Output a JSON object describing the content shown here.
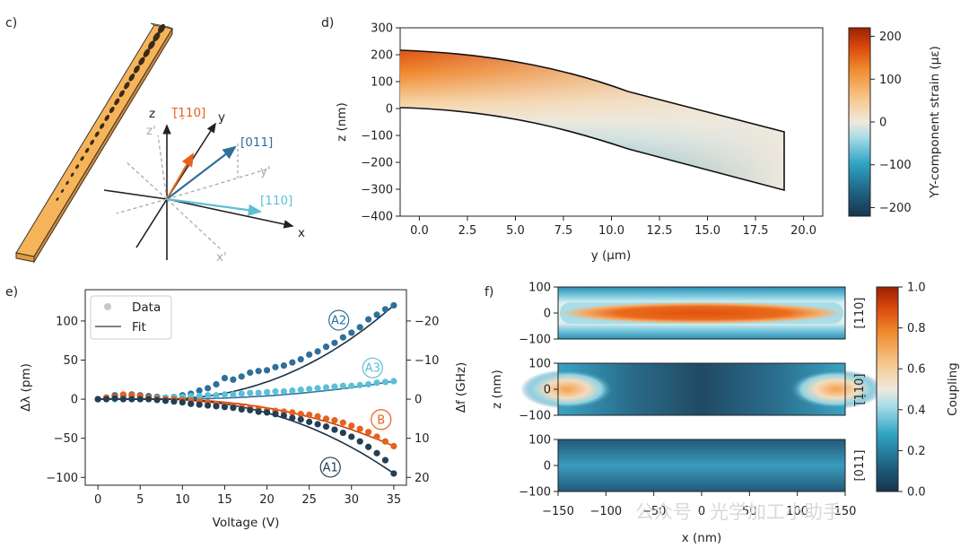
{
  "panels": {
    "c": "c)",
    "d": "d)",
    "e": "e)",
    "f": "f)"
  },
  "panel_c": {
    "axes": {
      "z": "z",
      "y": "y",
      "x": "x",
      "zp": "z'",
      "yp": "y'",
      "xp": "x'"
    },
    "directions": {
      "m110": "[̅1̠10]",
      "d011": "[011]",
      "d110": "[110]"
    },
    "direction_labels": {
      "m110": "[110]",
      "d011": "[011]",
      "d110": "[110]"
    },
    "colors": {
      "m110": "#e8601c",
      "d011": "#2f6f9a",
      "d110": "#5bc0d6",
      "beam": "#f6b45a"
    }
  },
  "chart_data": [
    {
      "id": "d",
      "type": "heatmap",
      "xlabel": "y (μm)",
      "ylabel": "z (nm)",
      "xlim": [
        -1,
        21
      ],
      "ylim": [
        -400,
        300
      ],
      "xticks": [
        "0.0",
        "2.5",
        "5.0",
        "7.5",
        "10.0",
        "12.5",
        "15.0",
        "17.5",
        "20.0"
      ],
      "yticks": [
        "300",
        "200",
        "100",
        "0",
        "−100",
        "−200",
        "−300",
        "−400"
      ],
      "colorbar": {
        "label": "YY-component strain (με)",
        "ticks": [
          "200",
          "100",
          "0",
          "−100",
          "−200"
        ],
        "range": [
          -220,
          220
        ]
      },
      "beam": {
        "y_start": 0,
        "y_end": 19,
        "top_z_start": 215,
        "top_z_end": -85,
        "bottom_z_start": 0,
        "bottom_z_end": -300
      }
    },
    {
      "id": "e",
      "type": "scatter",
      "xlabel": "Voltage (V)",
      "ylabel": "Δλ (pm)",
      "ylabel_right": "Δf (GHz)",
      "xlim": [
        -1.5,
        36.5
      ],
      "ylim": [
        -110,
        140
      ],
      "xticks": [
        "0",
        "5",
        "10",
        "15",
        "20",
        "25",
        "30",
        "35"
      ],
      "yticks": [
        "100",
        "50",
        "0",
        "−50",
        "−100"
      ],
      "yticks_right": [
        "−20",
        "−10",
        "0",
        "10",
        "20"
      ],
      "legend": {
        "data": "Data",
        "fit": "Fit"
      },
      "x": [
        0,
        1,
        2,
        3,
        4,
        5,
        6,
        7,
        8,
        9,
        10,
        11,
        12,
        13,
        14,
        15,
        16,
        17,
        18,
        19,
        20,
        21,
        22,
        23,
        24,
        25,
        26,
        27,
        28,
        29,
        30,
        31,
        32,
        33,
        34,
        35
      ],
      "series": [
        {
          "name": "A2",
          "color": "#2f6f9a",
          "values": [
            0,
            2,
            5,
            4,
            6,
            5,
            4,
            3,
            2,
            3,
            5,
            7,
            11,
            14,
            19,
            27,
            25,
            29,
            34,
            36,
            37,
            41,
            43,
            47,
            51,
            57,
            61,
            67,
            72,
            79,
            85,
            92,
            102,
            108,
            115,
            120
          ]
        },
        {
          "name": "A3",
          "color": "#5bc0d6",
          "values": [
            0,
            1,
            0,
            1,
            2,
            2,
            1,
            2,
            2,
            3,
            3,
            4,
            4,
            5,
            5,
            6,
            6,
            7,
            8,
            8,
            9,
            10,
            10,
            11,
            12,
            13,
            14,
            15,
            16,
            17,
            17,
            18,
            19,
            21,
            22,
            23
          ]
        },
        {
          "name": "B",
          "color": "#e8601c",
          "values": [
            0,
            2,
            3,
            6,
            5,
            4,
            2,
            1,
            0,
            0,
            -1,
            -2,
            -3,
            -4,
            -6,
            -7,
            -8,
            -10,
            -11,
            -12,
            -14,
            -15,
            -16,
            -17,
            -19,
            -20,
            -22,
            -25,
            -27,
            -30,
            -34,
            -38,
            -42,
            -48,
            -54,
            -60
          ]
        },
        {
          "name": "A1",
          "color": "#213f57",
          "values": [
            0,
            0,
            1,
            0,
            0,
            0,
            0,
            -1,
            -2,
            -3,
            -4,
            -6,
            -7,
            -8,
            -9,
            -10,
            -11,
            -13,
            -14,
            -16,
            -17,
            -19,
            -21,
            -24,
            -26,
            -29,
            -32,
            -35,
            -39,
            -43,
            -48,
            -54,
            -61,
            -69,
            -78,
            -95
          ]
        }
      ]
    },
    {
      "id": "f",
      "type": "heatmap",
      "xlabel": "x (nm)",
      "ylabel": "z (nm)",
      "xlim": [
        -150,
        150
      ],
      "xticks": [
        "−150",
        "−100",
        "−50",
        "0",
        "50",
        "100",
        "150"
      ],
      "yticks": [
        "100",
        "0",
        "−100"
      ],
      "rows": [
        "[110]",
        "[̅1̠10]",
        "[011]"
      ],
      "row_labels": [
        "[110]",
        "[110]",
        "[011]"
      ],
      "colorbar": {
        "label": "Coupling",
        "ticks": [
          "1.0",
          "0.8",
          "0.6",
          "0.4",
          "0.2",
          "0.0"
        ],
        "range": [
          0,
          1
        ]
      }
    }
  ],
  "watermark": "公众号 · 光学加工小助手"
}
